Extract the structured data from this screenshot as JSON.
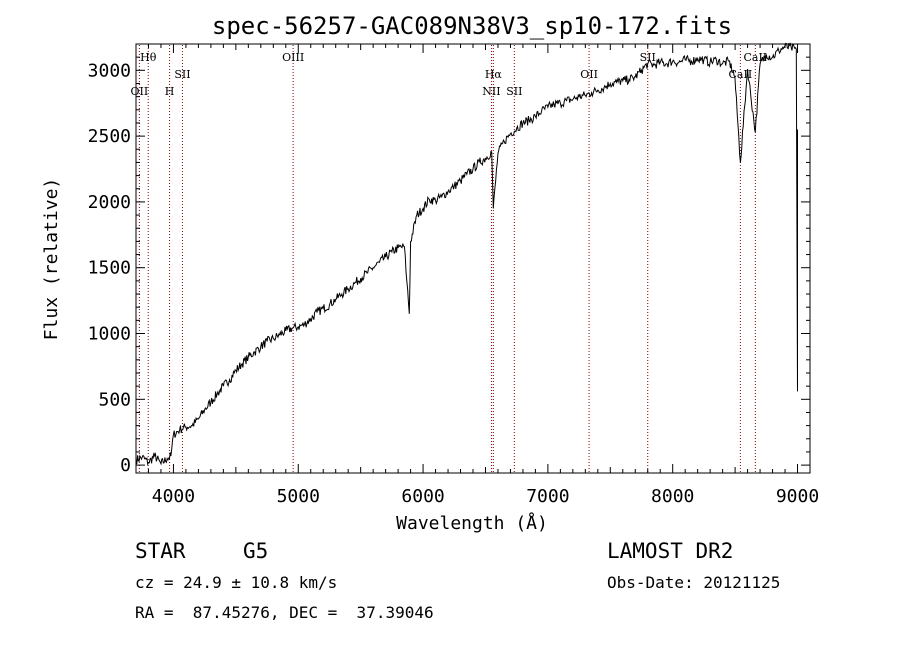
{
  "chart_data": {
    "type": "line",
    "title": "spec-56257-GAC089N38V3_sp10-172.fits",
    "xlabel": "Wavelength (Å)",
    "ylabel": "Flux (relative)",
    "xlim": [
      3700,
      9100
    ],
    "ylim": [
      -60,
      3200
    ],
    "x_ticks": [
      4000,
      5000,
      6000,
      7000,
      8000,
      9000
    ],
    "y_ticks": [
      0,
      500,
      1000,
      1500,
      2000,
      2500,
      3000
    ],
    "grid": false,
    "line_color": "#000000",
    "marker_color": "#8b0000",
    "series": [
      {
        "x": [
          3700,
          3750,
          3800,
          3850,
          3900,
          3950,
          3980,
          4000,
          4050,
          4100,
          4150,
          4200,
          4250,
          4300,
          4350,
          4400,
          4450,
          4500,
          4550,
          4600,
          4650,
          4700,
          4750,
          4800,
          4850,
          4900,
          4950,
          5000,
          5050,
          5100,
          5150,
          5200,
          5250,
          5300,
          5350,
          5400,
          5450,
          5500,
          5550,
          5600,
          5650,
          5700,
          5750,
          5800,
          5850,
          5870,
          5890,
          5900,
          5950,
          6000,
          6050,
          6100,
          6150,
          6200,
          6250,
          6300,
          6350,
          6400,
          6450,
          6500,
          6550,
          6563,
          6600,
          6650,
          6700,
          6750,
          6800,
          6850,
          6900,
          6950,
          7000,
          7050,
          7100,
          7150,
          7200,
          7250,
          7300,
          7350,
          7400,
          7450,
          7500,
          7550,
          7600,
          7650,
          7700,
          7750,
          7800,
          7850,
          7900,
          7950,
          8000,
          8050,
          8100,
          8150,
          8200,
          8250,
          8300,
          8350,
          8400,
          8450,
          8498,
          8542,
          8600,
          8662,
          8700,
          8750,
          8800,
          8850,
          8900,
          8950,
          8990,
          9000
        ],
        "y": [
          40,
          60,
          20,
          70,
          10,
          50,
          70,
          230,
          270,
          290,
          300,
          350,
          420,
          480,
          540,
          600,
          650,
          720,
          770,
          820,
          860,
          900,
          940,
          960,
          990,
          1020,
          1040,
          1050,
          1070,
          1110,
          1160,
          1190,
          1220,
          1260,
          1300,
          1340,
          1380,
          1420,
          1460,
          1500,
          1540,
          1580,
          1620,
          1650,
          1660,
          1400,
          1150,
          1700,
          1900,
          1950,
          2020,
          2010,
          2040,
          2080,
          2120,
          2160,
          2210,
          2250,
          2300,
          2330,
          2380,
          1950,
          2370,
          2460,
          2520,
          2560,
          2600,
          2620,
          2650,
          2690,
          2720,
          2740,
          2750,
          2770,
          2780,
          2800,
          2810,
          2830,
          2850,
          2870,
          2900,
          2910,
          2920,
          2930,
          2950,
          3000,
          3050,
          3040,
          3060,
          3050,
          3070,
          3060,
          3080,
          3070,
          3090,
          3080,
          3060,
          3080,
          3050,
          3070,
          2950,
          2300,
          3010,
          2530,
          3050,
          3120,
          3100,
          3150,
          3180,
          3170,
          3160,
          560
        ]
      }
    ],
    "line_markers": [
      {
        "label": "Hθ",
        "x": 3798,
        "row": 1
      },
      {
        "label": "OII",
        "x": 3727,
        "row": 3
      },
      {
        "label": "H",
        "x": 3969,
        "row": 3
      },
      {
        "label": "SII",
        "x": 4072,
        "row": 2
      },
      {
        "label": "OIII",
        "x": 4959,
        "row": 1
      },
      {
        "label": "Hα",
        "x": 6563,
        "row": 2
      },
      {
        "label": "NII",
        "x": 6548,
        "row": 3
      },
      {
        "label": "SII",
        "x": 6731,
        "row": 3
      },
      {
        "label": "OII",
        "x": 7330,
        "row": 2
      },
      {
        "label": "SII",
        "x": 7800,
        "row": 1
      },
      {
        "label": "CaII",
        "x": 8542,
        "row": 2
      },
      {
        "label": "CaII",
        "x": 8662,
        "row": 1
      }
    ],
    "marker_lines_x": [
      3727,
      3798,
      3969,
      4072,
      4959,
      6548,
      6563,
      6731,
      7330,
      7800,
      8542,
      8662
    ]
  },
  "info": {
    "class_label": "STAR",
    "subclass_label": "G5",
    "cz_text": "cz = 24.9 ± 10.8 km/s",
    "coords_text": "RA =  87.45276, DEC =  37.39046",
    "survey_label": "LAMOST DR2",
    "obs_date_text": "Obs-Date: 20121125"
  }
}
